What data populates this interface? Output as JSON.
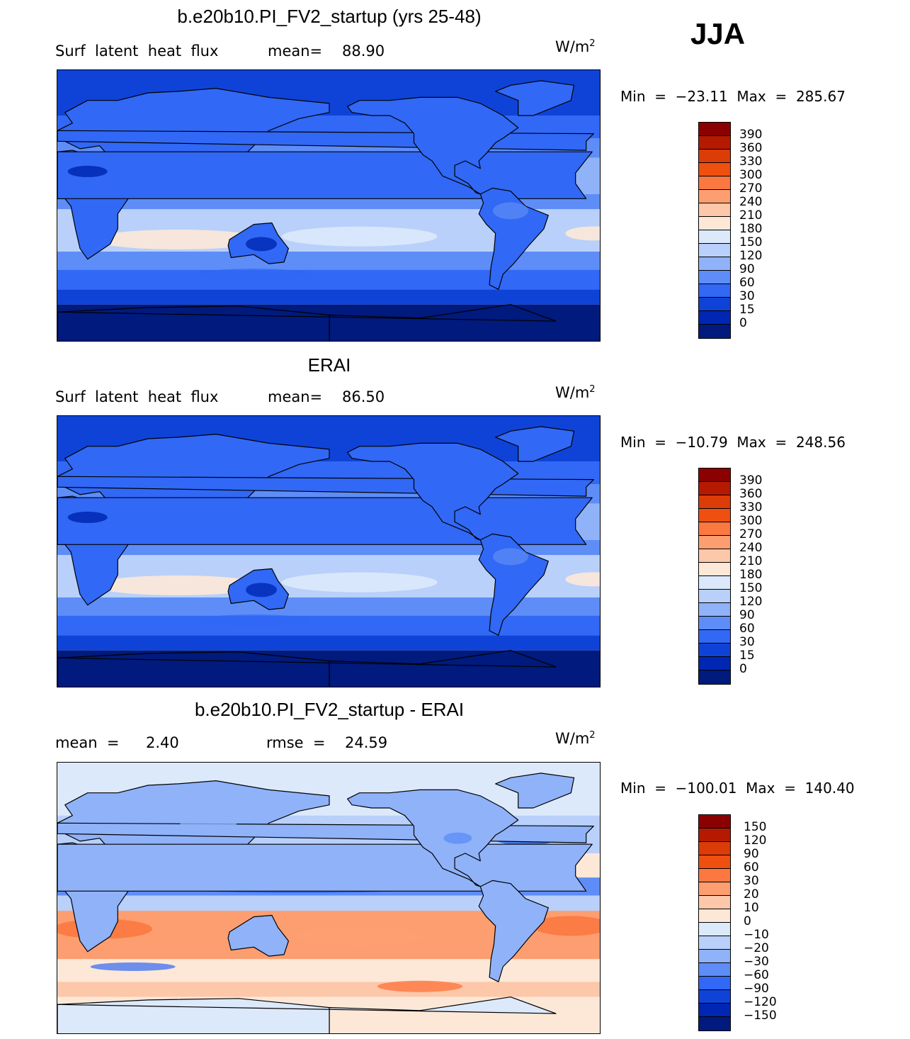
{
  "season": "JJA",
  "panels": [
    {
      "title": "b.e20b10.PI_FV2_startup (yrs 25-48)",
      "left_label": "Surf  latent  heat  flux",
      "stat_label": "mean=",
      "stat_value": "88.90",
      "units": "W/m",
      "units_exp": "2",
      "min_label": "Min  =  −23.11  Max  =  285.67",
      "colorbar": {
        "labels": [
          "390",
          "360",
          "330",
          "300",
          "270",
          "240",
          "210",
          "180",
          "150",
          "120",
          "90",
          "60",
          "30",
          "15",
          "0"
        ],
        "colors": [
          "#8b0000",
          "#b51a00",
          "#dc3c07",
          "#f0500f",
          "#fc7841",
          "#fd9e70",
          "#fdc7a9",
          "#fde8d8",
          "#dce9fb",
          "#b8d0fa",
          "#8fb2f9",
          "#5e8df7",
          "#3168f5",
          "#0f43d8",
          "#0027b3",
          "#001a7d"
        ]
      },
      "chart_data": {
        "type": "heatmap",
        "mean": 88.9,
        "min": -23.11,
        "max": 285.67
      }
    },
    {
      "title": "ERAI",
      "left_label": "Surf  latent  heat  flux",
      "stat_label": "mean=",
      "stat_value": "86.50",
      "units": "W/m",
      "units_exp": "2",
      "min_label": "Min  =  −10.79  Max  =  248.56",
      "colorbar": {
        "labels": [
          "390",
          "360",
          "330",
          "300",
          "270",
          "240",
          "210",
          "180",
          "150",
          "120",
          "90",
          "60",
          "30",
          "15",
          "0"
        ],
        "colors": [
          "#8b0000",
          "#b51a00",
          "#dc3c07",
          "#f0500f",
          "#fc7841",
          "#fd9e70",
          "#fdc7a9",
          "#fde8d8",
          "#dce9fb",
          "#b8d0fa",
          "#8fb2f9",
          "#5e8df7",
          "#3168f5",
          "#0f43d8",
          "#0027b3",
          "#001a7d"
        ]
      },
      "chart_data": {
        "type": "heatmap",
        "mean": 86.5,
        "min": -10.79,
        "max": 248.56
      }
    },
    {
      "title": "b.e20b10.PI_FV2_startup - ERAI",
      "left_label": "mean  =",
      "left_value": "2.40",
      "stat_label": "rmse  =",
      "stat_value": "24.59",
      "units": "W/m",
      "units_exp": "2",
      "min_label": "Min  =  −100.01  Max  =  140.40",
      "colorbar": {
        "labels": [
          "150",
          "120",
          "90",
          "60",
          "30",
          "20",
          "10",
          "0",
          "−10",
          "−20",
          "−30",
          "−60",
          "−90",
          "−120",
          "−150"
        ],
        "colors": [
          "#8b0000",
          "#b51a00",
          "#dc3c07",
          "#f0500f",
          "#fc7841",
          "#fd9e70",
          "#fdc7a9",
          "#fde8d8",
          "#dce9fb",
          "#b8d0fa",
          "#8fb2f9",
          "#5e8df7",
          "#3168f5",
          "#0f43d8",
          "#0027b3",
          "#001a7d"
        ]
      },
      "chart_data": {
        "type": "heatmap",
        "mean": 2.4,
        "rmse": 24.59,
        "min": -100.01,
        "max": 140.4
      }
    }
  ]
}
